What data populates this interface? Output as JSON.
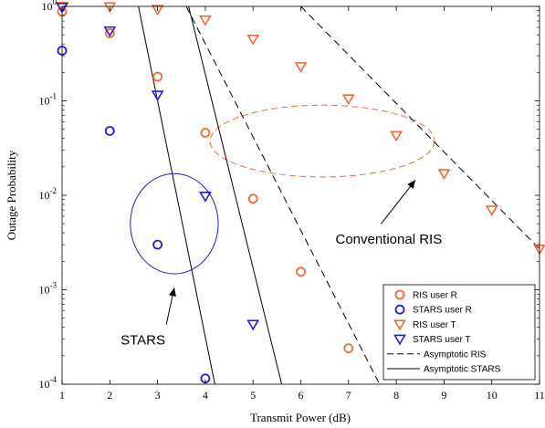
{
  "chart_data": {
    "type": "scatter",
    "xlabel": "Transmit Power (dB)",
    "ylabel": "Outage Probability",
    "x_ticks": [
      "1",
      "2",
      "3",
      "4",
      "5",
      "6",
      "7",
      "8",
      "9",
      "10",
      "11"
    ],
    "y_ticks": [
      {
        "base": "10",
        "exp": "0",
        "value": 1
      },
      {
        "base": "10",
        "exp": "-1",
        "value": 0.1
      },
      {
        "base": "10",
        "exp": "-2",
        "value": 0.01
      },
      {
        "base": "10",
        "exp": "-3",
        "value": 0.001
      },
      {
        "base": "10",
        "exp": "-4",
        "value": 0.0001
      }
    ],
    "xlim": [
      1,
      11
    ],
    "ylim": [
      0.0001,
      1
    ],
    "yscale": "log",
    "grid": false,
    "legend_position": "bottom-right",
    "series": [
      {
        "name": "RIS user R",
        "marker": "circle",
        "color": "#f26a33",
        "points": [
          [
            1,
            0.88
          ],
          [
            2,
            0.52
          ],
          [
            3,
            0.18
          ],
          [
            4,
            0.046
          ],
          [
            5,
            0.0092
          ],
          [
            6,
            0.00155
          ],
          [
            7,
            0.00024
          ]
        ]
      },
      {
        "name": "STARS user R",
        "marker": "circle",
        "color": "#1f1fd6",
        "points": [
          [
            1,
            0.34
          ],
          [
            2,
            0.048
          ],
          [
            3,
            0.003
          ],
          [
            4,
            0.000115
          ]
        ]
      },
      {
        "name": "RIS user T",
        "marker": "triangle-down",
        "color": "#f26a33",
        "points": [
          [
            1,
            1.0
          ],
          [
            2,
            0.99
          ],
          [
            3,
            0.93
          ],
          [
            4,
            0.72
          ],
          [
            5,
            0.45
          ],
          [
            6,
            0.23
          ],
          [
            7,
            0.105
          ],
          [
            8,
            0.043
          ],
          [
            9,
            0.017
          ],
          [
            10,
            0.007
          ],
          [
            11,
            0.0027
          ]
        ]
      },
      {
        "name": "STARS user T",
        "marker": "triangle-down",
        "color": "#1f1fd6",
        "points": [
          [
            1,
            0.98
          ],
          [
            2,
            0.55
          ],
          [
            3,
            0.115
          ],
          [
            4,
            0.0098
          ],
          [
            5,
            0.00043
          ]
        ]
      },
      {
        "name": "Asymptotic RIS",
        "line_style": "dashed",
        "color": "#000000",
        "lines": [
          [
            [
              3.6,
              1.0
            ],
            [
              7.65,
              0.0001
            ]
          ],
          [
            [
              6.0,
              1.0
            ],
            [
              11.0,
              0.0027
            ]
          ]
        ]
      },
      {
        "name": "Asymptotic STARS",
        "line_style": "solid",
        "color": "#000000",
        "lines": [
          [
            [
              2.6,
              1.0
            ],
            [
              4.2,
              0.0001
            ]
          ],
          [
            [
              3.65,
              1.0
            ],
            [
              5.6,
              0.0001
            ]
          ]
        ]
      }
    ],
    "annotations": [
      {
        "text": "STARS",
        "color": "#1f1fd6",
        "ellipse": {
          "cx": 3.35,
          "cy": 0.005,
          "rx": 0.92,
          "ry_decades": 0.53
        },
        "label_at": [
          2.8,
          0.0003
        ],
        "arrow_to": [
          3.35,
          0.00105
        ]
      },
      {
        "text": "Conventional RIS",
        "color": "#f26a33",
        "ellipse": {
          "cx": 6.45,
          "cy": 0.0375,
          "rx": 2.35,
          "ry_decades": 0.38
        },
        "label_at": [
          7.3,
          0.0035
        ],
        "arrow_to": [
          8.4,
          0.0145
        ]
      }
    ]
  }
}
